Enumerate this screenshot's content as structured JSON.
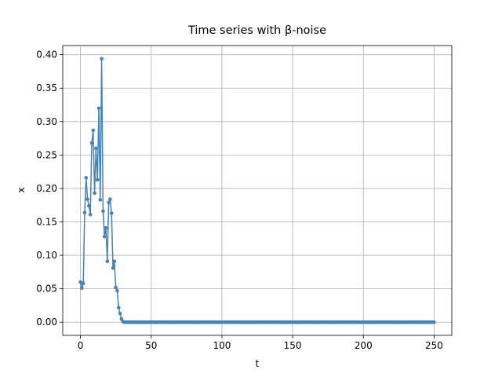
{
  "chart_data": {
    "type": "line",
    "title": "Time series with β-noise",
    "xlabel": "t",
    "ylabel": "x",
    "color": "#4682b4",
    "grid": true,
    "xlim": [
      -12.5,
      262.5
    ],
    "ylim": [
      -0.0197,
      0.4137
    ],
    "xticks": [
      0,
      50,
      100,
      150,
      200,
      250
    ],
    "yticks": [
      {
        "value": 0,
        "label": "0.00"
      },
      {
        "value": 0.05,
        "label": "0.05"
      },
      {
        "value": 0.1,
        "label": "0.10"
      },
      {
        "value": 0.15,
        "label": "0.15"
      },
      {
        "value": 0.2,
        "label": "0.20"
      },
      {
        "value": 0.25,
        "label": "0.25"
      },
      {
        "value": 0.3,
        "label": "0.30"
      },
      {
        "value": 0.35,
        "label": "0.35"
      },
      {
        "value": 0.4,
        "label": "0.40"
      }
    ],
    "x": [
      0,
      1,
      2,
      3,
      4,
      5,
      6,
      7,
      8,
      9,
      10,
      11,
      12,
      13,
      14,
      15,
      16,
      17,
      18,
      19,
      20,
      21,
      22,
      23,
      24,
      25,
      26,
      27,
      28,
      29,
      30,
      31,
      32,
      33,
      34,
      35,
      36,
      37,
      38,
      39,
      40,
      41,
      42,
      43,
      44,
      45,
      46,
      47,
      48,
      49,
      50,
      51,
      52,
      53,
      54,
      55,
      56,
      57,
      58,
      59,
      60,
      61,
      62,
      63,
      64,
      65,
      66,
      67,
      68,
      69,
      70,
      71,
      72,
      73,
      74,
      75,
      76,
      77,
      78,
      79,
      80,
      81,
      82,
      83,
      84,
      85,
      86,
      87,
      88,
      89,
      90,
      91,
      92,
      93,
      94,
      95,
      96,
      97,
      98,
      99,
      100,
      101,
      102,
      103,
      104,
      105,
      106,
      107,
      108,
      109,
      110,
      111,
      112,
      113,
      114,
      115,
      116,
      117,
      118,
      119,
      120,
      121,
      122,
      123,
      124,
      125,
      126,
      127,
      128,
      129,
      130,
      131,
      132,
      133,
      134,
      135,
      136,
      137,
      138,
      139,
      140,
      141,
      142,
      143,
      144,
      145,
      146,
      147,
      148,
      149,
      150,
      151,
      152,
      153,
      154,
      155,
      156,
      157,
      158,
      159,
      160,
      161,
      162,
      163,
      164,
      165,
      166,
      167,
      168,
      169,
      170,
      171,
      172,
      173,
      174,
      175,
      176,
      177,
      178,
      179,
      180,
      181,
      182,
      183,
      184,
      185,
      186,
      187,
      188,
      189,
      190,
      191,
      192,
      193,
      194,
      195,
      196,
      197,
      198,
      199,
      200,
      201,
      202,
      203,
      204,
      205,
      206,
      207,
      208,
      209,
      210,
      211,
      212,
      213,
      214,
      215,
      216,
      217,
      218,
      219,
      220,
      221,
      222,
      223,
      224,
      225,
      226,
      227,
      228,
      229,
      230,
      231,
      232,
      233,
      234,
      235,
      236,
      237,
      238,
      239,
      240,
      241,
      242,
      243,
      244,
      245,
      246,
      247,
      248,
      249,
      250
    ],
    "values": [
      0.06,
      0.051,
      0.058,
      0.164,
      0.216,
      0.184,
      0.174,
      0.161,
      0.268,
      0.287,
      0.193,
      0.26,
      0.213,
      0.32,
      0.183,
      0.394,
      0.166,
      0.128,
      0.141,
      0.091,
      0.179,
      0.184,
      0.163,
      0.081,
      0.091,
      0.052,
      0.047,
      0.022,
      0.013,
      0.005,
      0.001,
      0,
      0,
      0,
      0,
      0,
      0,
      0,
      0,
      0,
      0,
      0,
      0,
      0,
      0,
      0,
      0,
      0,
      0,
      0,
      0,
      0,
      0,
      0,
      0,
      0,
      0,
      0,
      0,
      0,
      0,
      0,
      0,
      0,
      0,
      0,
      0,
      0,
      0,
      0,
      0,
      0,
      0,
      0,
      0,
      0,
      0,
      0,
      0,
      0,
      0,
      0,
      0,
      0,
      0,
      0,
      0,
      0,
      0,
      0,
      0,
      0,
      0,
      0,
      0,
      0,
      0,
      0,
      0,
      0,
      0,
      0,
      0,
      0,
      0,
      0,
      0,
      0,
      0,
      0,
      0,
      0,
      0,
      0,
      0,
      0,
      0,
      0,
      0,
      0,
      0,
      0,
      0,
      0,
      0,
      0,
      0,
      0,
      0,
      0,
      0,
      0,
      0,
      0,
      0,
      0,
      0,
      0,
      0,
      0,
      0,
      0,
      0,
      0,
      0,
      0,
      0,
      0,
      0,
      0,
      0,
      0,
      0,
      0,
      0,
      0,
      0,
      0,
      0,
      0,
      0,
      0,
      0,
      0,
      0,
      0,
      0,
      0,
      0,
      0,
      0,
      0,
      0,
      0,
      0,
      0,
      0,
      0,
      0,
      0,
      0,
      0,
      0,
      0,
      0,
      0,
      0,
      0,
      0,
      0,
      0,
      0,
      0,
      0,
      0,
      0,
      0,
      0,
      0,
      0,
      0,
      0,
      0,
      0,
      0,
      0,
      0,
      0,
      0,
      0,
      0,
      0,
      0,
      0,
      0,
      0,
      0,
      0,
      0,
      0,
      0,
      0,
      0,
      0,
      0,
      0,
      0,
      0,
      0,
      0,
      0,
      0,
      0,
      0,
      0,
      0,
      0,
      0,
      0,
      0,
      0,
      0,
      0,
      0,
      0,
      0,
      0,
      0,
      0,
      0,
      0
    ]
  }
}
